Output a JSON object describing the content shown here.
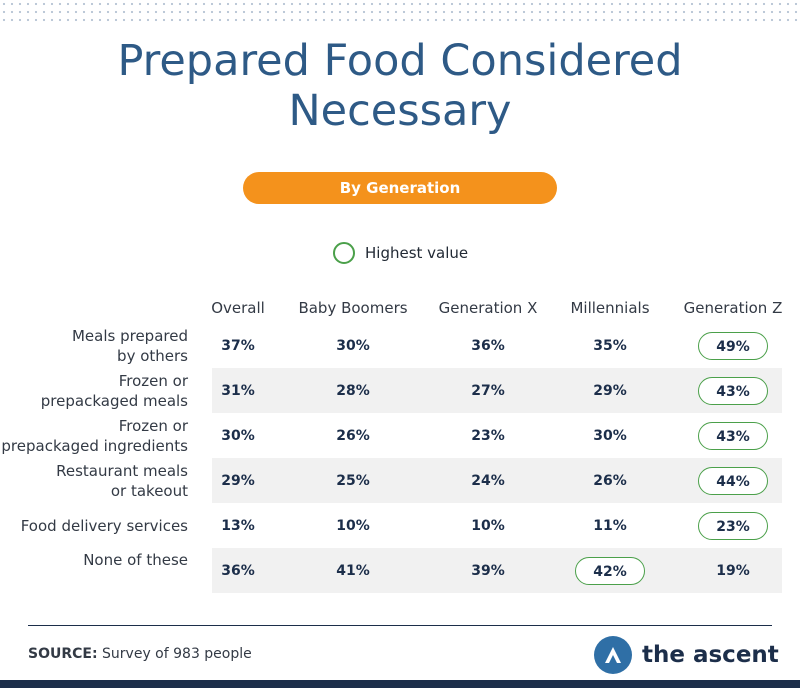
{
  "title_lines": [
    "Prepared Food Considered",
    "Necessary"
  ],
  "subtitle": "By Generation",
  "legend": {
    "label": "Highest value"
  },
  "source": {
    "label": "SOURCE:",
    "text": "Survey of 983 people"
  },
  "brand": {
    "name": "the ascent"
  },
  "colors": {
    "title": "#2e5a86",
    "pill": "#f4921c",
    "highlight": "#4ba04a",
    "navy": "#1c2e4a"
  },
  "chart_data": {
    "type": "table",
    "columns": [
      "Overall",
      "Baby Boomers",
      "Generation X",
      "Millennials",
      "Generation Z"
    ],
    "rows": [
      {
        "label": [
          "Meals prepared",
          "by others"
        ],
        "values": [
          "37%",
          "30%",
          "36%",
          "35%",
          "49%"
        ],
        "highlight": 4
      },
      {
        "label": [
          "Frozen or",
          "prepackaged meals"
        ],
        "values": [
          "31%",
          "28%",
          "27%",
          "29%",
          "43%"
        ],
        "highlight": 4
      },
      {
        "label": [
          "Frozen or",
          "prepackaged ingredients"
        ],
        "values": [
          "30%",
          "26%",
          "23%",
          "30%",
          "43%"
        ],
        "highlight": 4
      },
      {
        "label": [
          "Restaurant meals",
          "or takeout"
        ],
        "values": [
          "29%",
          "25%",
          "24%",
          "26%",
          "44%"
        ],
        "highlight": 4
      },
      {
        "label": [
          "Food delivery services"
        ],
        "values": [
          "13%",
          "10%",
          "10%",
          "11%",
          "23%"
        ],
        "highlight": 4
      },
      {
        "label": [
          "None of these"
        ],
        "values": [
          "36%",
          "41%",
          "39%",
          "42%",
          "19%"
        ],
        "highlight": 3
      }
    ]
  }
}
